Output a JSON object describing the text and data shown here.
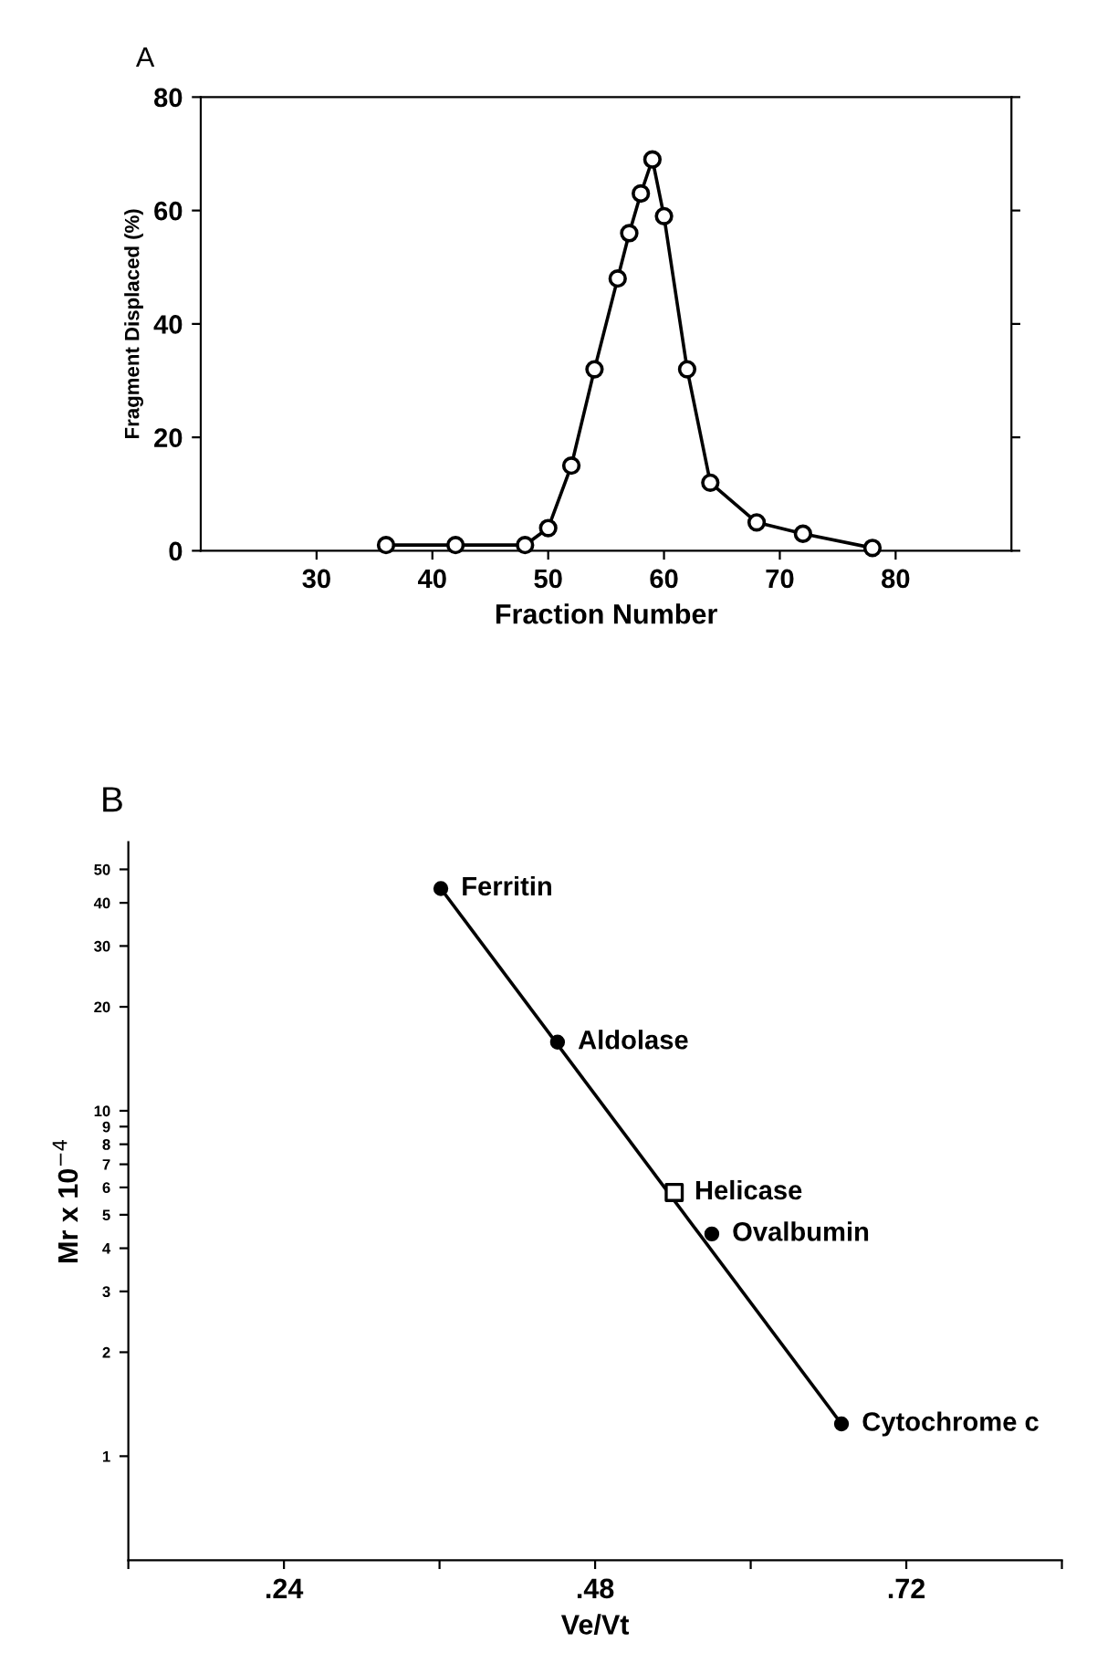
{
  "chart_data": [
    {
      "type": "line",
      "title": "A",
      "xlabel": "Fraction Number",
      "ylabel": "Fragment Displaced (%)",
      "marker": "circle",
      "x": [
        36,
        42,
        48,
        50,
        52,
        54,
        56,
        57,
        58,
        59,
        60,
        62,
        64,
        68,
        72,
        78
      ],
      "series": [
        {
          "color": "#000000",
          "values": [
            1,
            1,
            1,
            4,
            15,
            32,
            48,
            56,
            63,
            69,
            59,
            32,
            12,
            5,
            3,
            0.5
          ]
        }
      ],
      "xlim": [
        20,
        90
      ],
      "xticks": [
        30,
        40,
        50,
        60,
        70,
        80
      ],
      "ylim": [
        0,
        80
      ],
      "yticks": [
        0,
        20,
        40,
        60,
        80
      ],
      "grid": false,
      "legend": false
    },
    {
      "type": "scatter",
      "title": "B",
      "xlabel": "Ve/Vt",
      "ylabel": "Mr x 10$^{−4}$",
      "log": "y",
      "series": [
        {
          "type": "line",
          "color": "#000000",
          "marker": "none",
          "x": [
            0.361,
            0.67
          ],
          "values": [
            44,
            1.24
          ]
        },
        {
          "type": "scatter",
          "color": "#000000",
          "marker": "circle",
          "x": [
            0.361,
            0.451,
            0.57,
            0.67
          ],
          "values": [
            44,
            15.8,
            4.4,
            1.24
          ]
        },
        {
          "type": "scatter",
          "color": "#000000",
          "marker": "square",
          "x": [
            0.541
          ],
          "values": [
            5.8
          ]
        }
      ],
      "annotations": [
        {
          "text": "Ferritin",
          "x": 0.361,
          "y": 44
        },
        {
          "text": "Aldolase",
          "x": 0.451,
          "y": 15.8
        },
        {
          "text": "Helicase",
          "x": 0.541,
          "y": 5.8
        },
        {
          "text": "Ovalbumin",
          "x": 0.57,
          "y": 4.4
        },
        {
          "text": "Cytochrome c",
          "x": 0.67,
          "y": 1.24
        }
      ],
      "xlim": [
        0.12,
        0.84
      ],
      "xticks": [
        {
          "value": 0.12,
          "label": null
        },
        {
          "value": 0.24,
          "label": ".24"
        },
        {
          "value": 0.36,
          "label": null
        },
        {
          "value": 0.48,
          "label": ".48"
        },
        {
          "value": 0.6,
          "label": null
        },
        {
          "value": 0.72,
          "label": ".72"
        },
        {
          "value": 0.84,
          "label": null
        }
      ],
      "ylim": [
        0.5,
        60
      ],
      "yticks": [
        1,
        2,
        3,
        4,
        5,
        6,
        7,
        8,
        9,
        10,
        20,
        30,
        40,
        50
      ],
      "grid": false,
      "legend": false
    }
  ]
}
